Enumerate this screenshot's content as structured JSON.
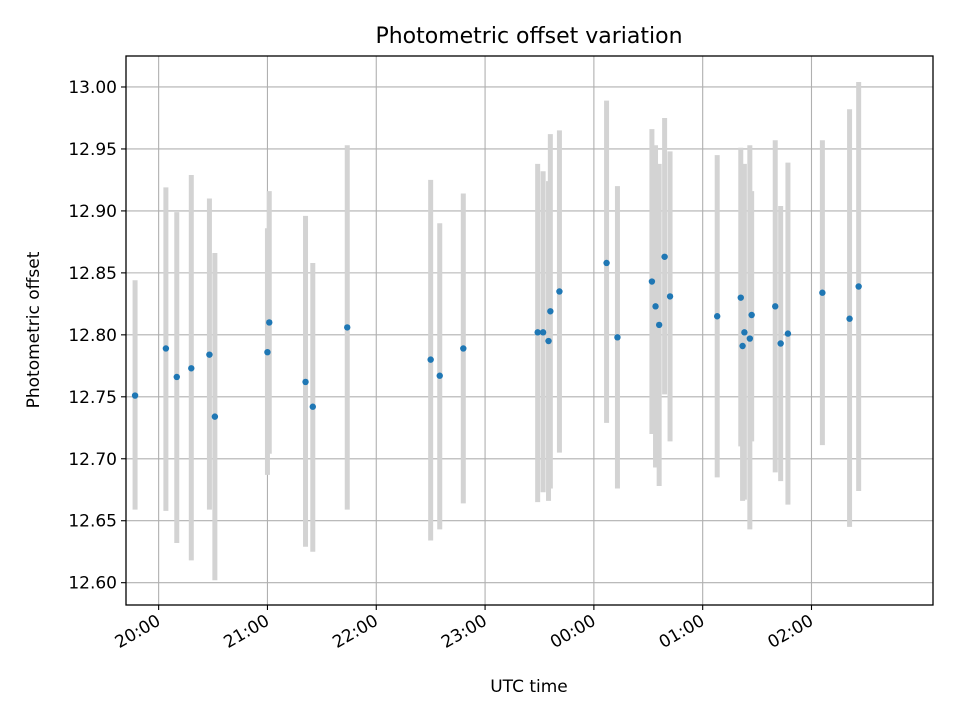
{
  "chart_data": {
    "type": "scatter",
    "title": "Photometric offset variation",
    "xlabel": "UTC time",
    "ylabel": "Photometric offset",
    "grid": true,
    "xlim": [
      "19:42",
      "27:07"
    ],
    "ylim": [
      12.582,
      13.025
    ],
    "xticks": [
      {
        "t": "20:00",
        "label": "20:00"
      },
      {
        "t": "21:00",
        "label": "21:00"
      },
      {
        "t": "22:00",
        "label": "22:00"
      },
      {
        "t": "23:00",
        "label": "23:00"
      },
      {
        "t": "24:00",
        "label": "00:00"
      },
      {
        "t": "25:00",
        "label": "01:00"
      },
      {
        "t": "26:00",
        "label": "02:00"
      }
    ],
    "yticks": [
      "12.60",
      "12.65",
      "12.70",
      "12.75",
      "12.80",
      "12.85",
      "12.90",
      "12.95",
      "13.00"
    ],
    "series": [
      {
        "points": [
          {
            "t": "19:47",
            "y": 12.751,
            "lo": 12.659,
            "hi": 12.844
          },
          {
            "t": "20:04",
            "y": 12.789,
            "lo": 12.658,
            "hi": 12.919
          },
          {
            "t": "20:10",
            "y": 12.766,
            "lo": 12.632,
            "hi": 12.899
          },
          {
            "t": "20:18",
            "y": 12.773,
            "lo": 12.618,
            "hi": 12.929
          },
          {
            "t": "20:28",
            "y": 12.784,
            "lo": 12.659,
            "hi": 12.91
          },
          {
            "t": "20:31",
            "y": 12.734,
            "lo": 12.602,
            "hi": 12.866
          },
          {
            "t": "21:00",
            "y": 12.786,
            "lo": 12.687,
            "hi": 12.886
          },
          {
            "t": "21:01",
            "y": 12.81,
            "lo": 12.704,
            "hi": 12.916
          },
          {
            "t": "21:21",
            "y": 12.762,
            "lo": 12.629,
            "hi": 12.896
          },
          {
            "t": "21:25",
            "y": 12.742,
            "lo": 12.625,
            "hi": 12.858
          },
          {
            "t": "21:44",
            "y": 12.806,
            "lo": 12.659,
            "hi": 12.953
          },
          {
            "t": "22:30",
            "y": 12.78,
            "lo": 12.634,
            "hi": 12.925
          },
          {
            "t": "22:35",
            "y": 12.767,
            "lo": 12.643,
            "hi": 12.89
          },
          {
            "t": "22:48",
            "y": 12.789,
            "lo": 12.664,
            "hi": 12.914
          },
          {
            "t": "23:29",
            "y": 12.802,
            "lo": 12.665,
            "hi": 12.938
          },
          {
            "t": "23:32",
            "y": 12.802,
            "lo": 12.673,
            "hi": 12.932
          },
          {
            "t": "23:35",
            "y": 12.795,
            "lo": 12.666,
            "hi": 12.924
          },
          {
            "t": "23:36",
            "y": 12.819,
            "lo": 12.676,
            "hi": 12.962
          },
          {
            "t": "23:41",
            "y": 12.835,
            "lo": 12.705,
            "hi": 12.965
          },
          {
            "t": "24:07",
            "y": 12.858,
            "lo": 12.729,
            "hi": 12.989
          },
          {
            "t": "24:13",
            "y": 12.798,
            "lo": 12.676,
            "hi": 12.92
          },
          {
            "t": "24:32",
            "y": 12.843,
            "lo": 12.72,
            "hi": 12.966
          },
          {
            "t": "24:34",
            "y": 12.823,
            "lo": 12.693,
            "hi": 12.953
          },
          {
            "t": "24:36",
            "y": 12.808,
            "lo": 12.678,
            "hi": 12.938
          },
          {
            "t": "24:39",
            "y": 12.863,
            "lo": 12.752,
            "hi": 12.975
          },
          {
            "t": "24:42",
            "y": 12.831,
            "lo": 12.714,
            "hi": 12.948
          },
          {
            "t": "25:08",
            "y": 12.815,
            "lo": 12.685,
            "hi": 12.945
          },
          {
            "t": "25:21",
            "y": 12.83,
            "lo": 12.71,
            "hi": 12.951
          },
          {
            "t": "25:22",
            "y": 12.791,
            "lo": 12.666,
            "hi": 12.916
          },
          {
            "t": "25:23",
            "y": 12.802,
            "lo": 12.667,
            "hi": 12.938
          },
          {
            "t": "25:26",
            "y": 12.797,
            "lo": 12.643,
            "hi": 12.953
          },
          {
            "t": "25:27",
            "y": 12.816,
            "lo": 12.714,
            "hi": 12.916
          },
          {
            "t": "25:40",
            "y": 12.823,
            "lo": 12.689,
            "hi": 12.957
          },
          {
            "t": "25:43",
            "y": 12.793,
            "lo": 12.682,
            "hi": 12.904
          },
          {
            "t": "25:47",
            "y": 12.801,
            "lo": 12.663,
            "hi": 12.939
          },
          {
            "t": "26:06",
            "y": 12.834,
            "lo": 12.711,
            "hi": 12.957
          },
          {
            "t": "26:21",
            "y": 12.813,
            "lo": 12.645,
            "hi": 12.982
          },
          {
            "t": "26:26",
            "y": 12.839,
            "lo": 12.674,
            "hi": 13.004
          }
        ]
      }
    ],
    "colors": {
      "points": "#1f77b4",
      "errorbars": "#d3d3d3",
      "grid": "#b0b0b0"
    }
  }
}
